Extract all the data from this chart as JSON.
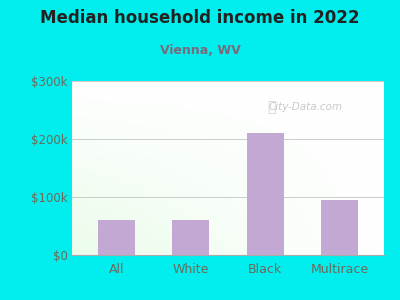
{
  "title": "Median household income in 2022",
  "subtitle": "Vienna, WV",
  "categories": [
    "All",
    "White",
    "Black",
    "Multirace"
  ],
  "values": [
    60000,
    60000,
    210000,
    95000
  ],
  "bar_color": "#C4A8D4",
  "outer_bg": "#00EEEE",
  "plot_bg_top_left": "#c8e8c8",
  "plot_bg_bottom_right": "#f0fff0",
  "title_color": "#222222",
  "subtitle_color": "#7a6a7a",
  "tick_label_color": "#6a6a5a",
  "ylim": [
    0,
    300000
  ],
  "yticks": [
    0,
    100000,
    200000,
    300000
  ],
  "ytick_labels": [
    "$0",
    "$100k",
    "$200k",
    "$300k"
  ],
  "watermark": "City-Data.com",
  "watermark_color": "#c0c0c0",
  "fig_width": 4.0,
  "fig_height": 3.0,
  "dpi": 100
}
